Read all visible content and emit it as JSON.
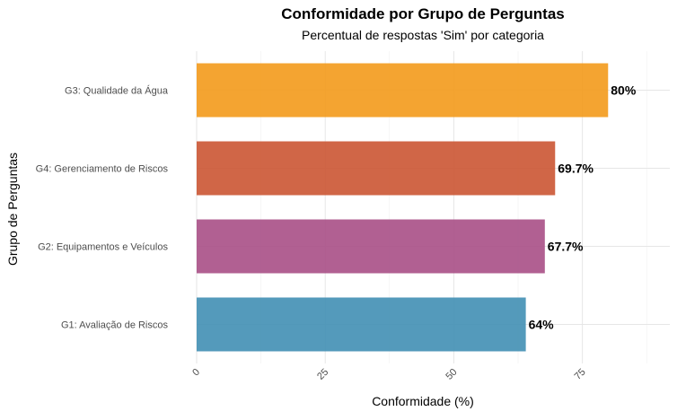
{
  "chart_data": {
    "type": "bar",
    "orientation": "horizontal",
    "title": "Conformidade por Grupo de Perguntas",
    "subtitle": "Percentual de respostas 'Sim' por categoria",
    "xlabel": "Conformidade (%)",
    "ylabel": "Grupo de Perguntas",
    "xlim": [
      0,
      92
    ],
    "xticks": [
      0,
      25,
      50,
      75
    ],
    "grid": true,
    "legend": "none",
    "categories": [
      "G3: Qualidade da Água",
      "G4: Gerenciamento de Riscos",
      "G2: Equipamentos e Veículos",
      "G1: Avaliação de Riscos"
    ],
    "values": [
      80,
      69.7,
      67.7,
      64
    ],
    "data_labels": [
      "80%",
      "69.7%",
      "67.7%",
      "64%"
    ],
    "colors": [
      "#F39A1B",
      "#CB5533",
      "#A84F86",
      "#418FB4"
    ]
  }
}
